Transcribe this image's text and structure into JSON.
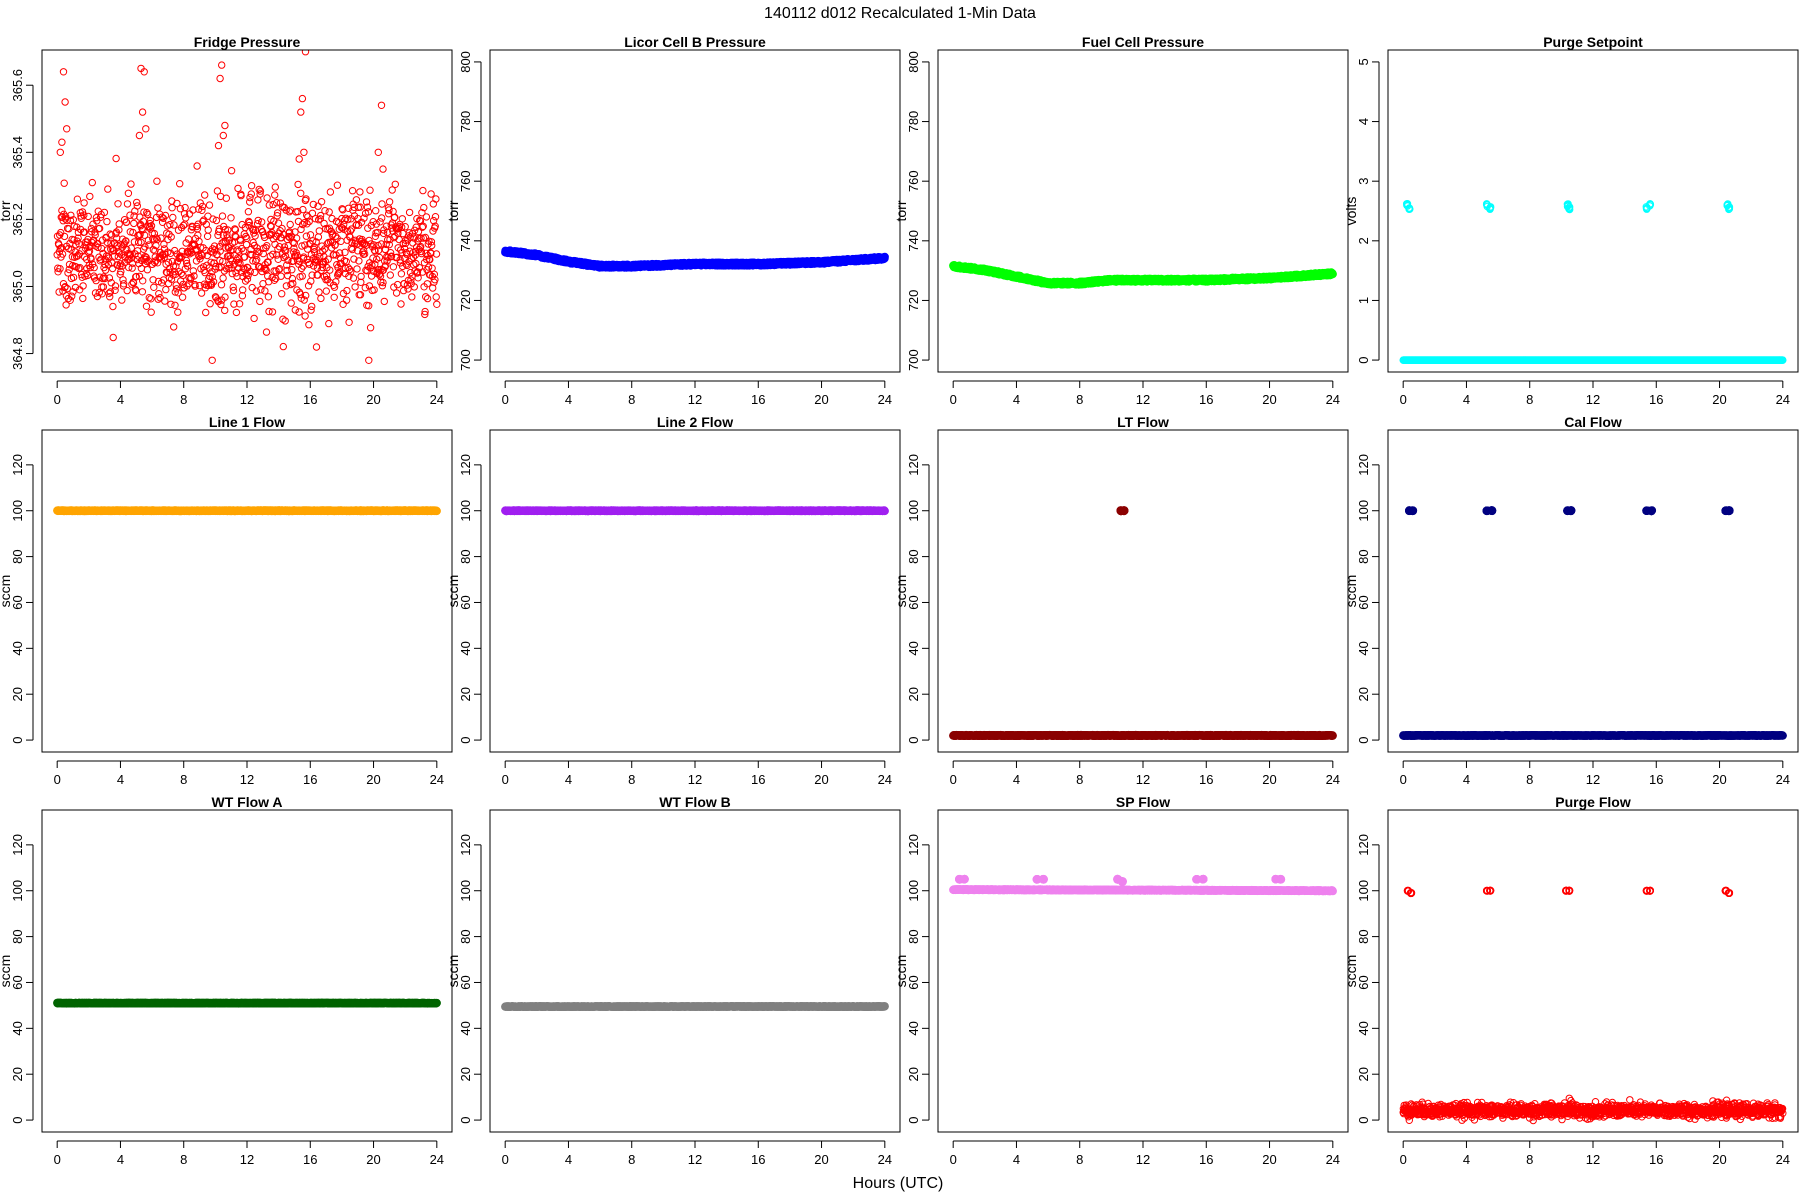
{
  "figure": {
    "title": "140112   d012   Recalculated 1-Min Data",
    "xlabel": "Hours (UTC)"
  },
  "chart_data": [
    {
      "type": "scatter",
      "title": "Fridge Pressure",
      "ylabel": "torr",
      "xlim": [
        -0.96,
        24.96
      ],
      "ylim": [
        364.745,
        365.705
      ],
      "xticks": [
        0,
        4,
        8,
        12,
        16,
        20,
        24
      ],
      "yticks": [
        364.8,
        365.0,
        365.2,
        365.4,
        365.6
      ],
      "ytick_labels": [
        "364.8",
        "365.0",
        "365.2",
        "365.4",
        "365.6"
      ],
      "color": "#ff0000",
      "marker": "open",
      "series": [
        {
          "generator": "noise",
          "center": 365.11,
          "sd": 0.085,
          "n": 1200,
          "spikes": [
            [
              0.4,
              365.64
            ],
            [
              0.5,
              365.55
            ],
            [
              0.6,
              365.47
            ],
            [
              0.3,
              365.43
            ],
            [
              0.2,
              365.4
            ],
            [
              5.3,
              365.65
            ],
            [
              5.5,
              365.64
            ],
            [
              5.4,
              365.52
            ],
            [
              5.6,
              365.47
            ],
            [
              5.2,
              365.45
            ],
            [
              10.4,
              365.66
            ],
            [
              10.3,
              365.62
            ],
            [
              10.6,
              365.48
            ],
            [
              10.5,
              365.45
            ],
            [
              10.2,
              365.42
            ],
            [
              15.7,
              365.7
            ],
            [
              15.5,
              365.56
            ],
            [
              15.4,
              365.52
            ],
            [
              15.6,
              365.4
            ],
            [
              15.3,
              365.38
            ],
            [
              20.5,
              365.54
            ],
            [
              20.3,
              365.4
            ],
            [
              20.6,
              365.35
            ],
            [
              9.8,
              364.78
            ],
            [
              19.7,
              364.78
            ]
          ]
        }
      ]
    },
    {
      "type": "scatter",
      "title": "Licor Cell B Pressure",
      "ylabel": "torr",
      "xlim": [
        -0.96,
        24.96
      ],
      "ylim": [
        696,
        804
      ],
      "xticks": [
        0,
        4,
        8,
        12,
        16,
        20,
        24
      ],
      "yticks": [
        700,
        720,
        740,
        760,
        780,
        800
      ],
      "ytick_labels": [
        "700",
        "720",
        "740",
        "760",
        "780",
        "800"
      ],
      "color": "#0000ff",
      "marker": "filled",
      "series": [
        {
          "generator": "line",
          "width": 1.0,
          "n": 1440,
          "points": [
            [
              0,
              736.5
            ],
            [
              2,
              735.2
            ],
            [
              4,
              733
            ],
            [
              6,
              731.5
            ],
            [
              8,
              731.5
            ],
            [
              12,
              732.2
            ],
            [
              16,
              732.2
            ],
            [
              20,
              732.8
            ],
            [
              24,
              734.2
            ]
          ]
        }
      ]
    },
    {
      "type": "scatter",
      "title": "Fuel Cell Pressure",
      "ylabel": "torr",
      "xlim": [
        -0.96,
        24.96
      ],
      "ylim": [
        696,
        804
      ],
      "xticks": [
        0,
        4,
        8,
        12,
        16,
        20,
        24
      ],
      "yticks": [
        700,
        720,
        740,
        760,
        780,
        800
      ],
      "ytick_labels": [
        "700",
        "720",
        "740",
        "760",
        "780",
        "800"
      ],
      "color": "#00ff00",
      "marker": "filled",
      "series": [
        {
          "generator": "line",
          "width": 1.0,
          "n": 1440,
          "points": [
            [
              0,
              731.5
            ],
            [
              2,
              730.2
            ],
            [
              4,
              728
            ],
            [
              6,
              725.8
            ],
            [
              8,
              725.8
            ],
            [
              10,
              726.8
            ],
            [
              16,
              726.8
            ],
            [
              20,
              727.5
            ],
            [
              24,
              729
            ]
          ]
        }
      ]
    },
    {
      "type": "scatter",
      "title": "Purge Setpoint",
      "ylabel": "volts",
      "xlim": [
        -0.96,
        24.96
      ],
      "ylim": [
        -0.2,
        5.2
      ],
      "xticks": [
        0,
        4,
        8,
        12,
        16,
        20,
        24
      ],
      "yticks": [
        0,
        1,
        2,
        3,
        4,
        5
      ],
      "ytick_labels": [
        "0",
        "1",
        "2",
        "3",
        "4",
        "5"
      ],
      "color": "#00ffff",
      "marker": "open",
      "series": [
        {
          "generator": "line",
          "width": 0.0,
          "n": 1440,
          "points": [
            [
              0,
              0
            ],
            [
              24,
              0
            ]
          ]
        },
        {
          "generator": "clusters",
          "width": 0.05,
          "n": 6,
          "points": [
            [
              0.25,
              2.6
            ],
            [
              0.4,
              2.55
            ],
            [
              5.3,
              2.6
            ],
            [
              5.5,
              2.55
            ],
            [
              10.4,
              2.6
            ],
            [
              10.5,
              2.55
            ],
            [
              15.4,
              2.55
            ],
            [
              15.6,
              2.6
            ],
            [
              20.5,
              2.6
            ],
            [
              20.6,
              2.55
            ]
          ]
        }
      ]
    },
    {
      "type": "scatter",
      "title": "Line 1 Flow",
      "ylabel": "sccm",
      "xlim": [
        -0.96,
        24.96
      ],
      "ylim": [
        -5.2,
        135.2
      ],
      "xticks": [
        0,
        4,
        8,
        12,
        16,
        20,
        24
      ],
      "yticks": [
        0,
        20,
        40,
        60,
        80,
        100,
        120
      ],
      "ytick_labels": [
        "0",
        "20",
        "40",
        "60",
        "80",
        "100",
        "120"
      ],
      "color": "#ffa500",
      "marker": "filled",
      "series": [
        {
          "generator": "line",
          "width": 0.3,
          "n": 1440,
          "points": [
            [
              0,
              100
            ],
            [
              24,
              100
            ]
          ]
        }
      ]
    },
    {
      "type": "scatter",
      "title": "Line 2 Flow",
      "ylabel": "sccm",
      "xlim": [
        -0.96,
        24.96
      ],
      "ylim": [
        -5.2,
        135.2
      ],
      "xticks": [
        0,
        4,
        8,
        12,
        16,
        20,
        24
      ],
      "yticks": [
        0,
        20,
        40,
        60,
        80,
        100,
        120
      ],
      "ytick_labels": [
        "0",
        "20",
        "40",
        "60",
        "80",
        "100",
        "120"
      ],
      "color": "#a020f0",
      "marker": "filled",
      "series": [
        {
          "generator": "line",
          "width": 0.3,
          "n": 1440,
          "points": [
            [
              0,
              100
            ],
            [
              24,
              100
            ]
          ]
        }
      ]
    },
    {
      "type": "scatter",
      "title": "LT Flow",
      "ylabel": "sccm",
      "xlim": [
        -0.96,
        24.96
      ],
      "ylim": [
        -5.2,
        135.2
      ],
      "xticks": [
        0,
        4,
        8,
        12,
        16,
        20,
        24
      ],
      "yticks": [
        0,
        20,
        40,
        60,
        80,
        100,
        120
      ],
      "ytick_labels": [
        "0",
        "20",
        "40",
        "60",
        "80",
        "100",
        "120"
      ],
      "color": "#8b0000",
      "marker": "filled",
      "series": [
        {
          "generator": "line",
          "width": 0.4,
          "n": 1440,
          "points": [
            [
              0,
              2
            ],
            [
              24,
              2
            ]
          ]
        },
        {
          "generator": "clusters",
          "width": 0.4,
          "n": 10,
          "points": [
            [
              10.6,
              100
            ],
            [
              10.8,
              100
            ]
          ]
        }
      ]
    },
    {
      "type": "scatter",
      "title": "Cal Flow",
      "ylabel": "sccm",
      "xlim": [
        -0.96,
        24.96
      ],
      "ylim": [
        -5.2,
        135.2
      ],
      "xticks": [
        0,
        4,
        8,
        12,
        16,
        20,
        24
      ],
      "yticks": [
        0,
        20,
        40,
        60,
        80,
        100,
        120
      ],
      "ytick_labels": [
        "0",
        "20",
        "40",
        "60",
        "80",
        "100",
        "120"
      ],
      "color": "#000080",
      "marker": "filled",
      "series": [
        {
          "generator": "line",
          "width": 0.3,
          "n": 1440,
          "points": [
            [
              0,
              2
            ],
            [
              24,
              2
            ]
          ]
        },
        {
          "generator": "clusters",
          "width": 0.3,
          "n": 14,
          "points": [
            [
              0.4,
              100
            ],
            [
              0.6,
              100
            ],
            [
              5.3,
              100
            ],
            [
              5.6,
              100
            ],
            [
              10.4,
              100
            ],
            [
              10.6,
              100
            ],
            [
              15.4,
              100
            ],
            [
              15.7,
              100
            ],
            [
              20.4,
              100
            ],
            [
              20.6,
              100
            ]
          ]
        }
      ]
    },
    {
      "type": "scatter",
      "title": "WT Flow A",
      "ylabel": "sccm",
      "xlim": [
        -0.96,
        24.96
      ],
      "ylim": [
        -5.2,
        135.2
      ],
      "xticks": [
        0,
        4,
        8,
        12,
        16,
        20,
        24
      ],
      "yticks": [
        0,
        20,
        40,
        60,
        80,
        100,
        120
      ],
      "ytick_labels": [
        "0",
        "20",
        "40",
        "60",
        "80",
        "100",
        "120"
      ],
      "color": "#006400",
      "marker": "filled",
      "series": [
        {
          "generator": "line",
          "width": 0.3,
          "n": 1440,
          "points": [
            [
              0,
              51
            ],
            [
              24,
              51
            ]
          ]
        }
      ]
    },
    {
      "type": "scatter",
      "title": "WT Flow B",
      "ylabel": "sccm",
      "xlim": [
        -0.96,
        24.96
      ],
      "ylim": [
        -5.2,
        135.2
      ],
      "xticks": [
        0,
        4,
        8,
        12,
        16,
        20,
        24
      ],
      "yticks": [
        0,
        20,
        40,
        60,
        80,
        100,
        120
      ],
      "ytick_labels": [
        "0",
        "20",
        "40",
        "60",
        "80",
        "100",
        "120"
      ],
      "color": "#808080",
      "marker": "filled",
      "series": [
        {
          "generator": "line",
          "width": 0.3,
          "n": 1440,
          "points": [
            [
              0,
              49.5
            ],
            [
              24,
              49.5
            ]
          ]
        }
      ]
    },
    {
      "type": "scatter",
      "title": "SP Flow",
      "ylabel": "sccm",
      "xlim": [
        -0.96,
        24.96
      ],
      "ylim": [
        -5.2,
        135.2
      ],
      "xticks": [
        0,
        4,
        8,
        12,
        16,
        20,
        24
      ],
      "yticks": [
        0,
        20,
        40,
        60,
        80,
        100,
        120
      ],
      "ytick_labels": [
        "0",
        "20",
        "40",
        "60",
        "80",
        "100",
        "120"
      ],
      "color": "#ee82ee",
      "marker": "filled",
      "series": [
        {
          "generator": "line",
          "width": 0.4,
          "n": 1440,
          "points": [
            [
              0,
              100.5
            ],
            [
              24,
              100
            ]
          ]
        },
        {
          "generator": "clusters",
          "width": 0.3,
          "n": 14,
          "points": [
            [
              0.4,
              105
            ],
            [
              0.7,
              105
            ],
            [
              5.3,
              105
            ],
            [
              5.7,
              105
            ],
            [
              10.4,
              105
            ],
            [
              10.7,
              104
            ],
            [
              15.4,
              105
            ],
            [
              15.8,
              105
            ],
            [
              20.4,
              105
            ],
            [
              20.7,
              105
            ]
          ]
        }
      ]
    },
    {
      "type": "scatter",
      "title": "Purge Flow",
      "ylabel": "sccm",
      "xlim": [
        -0.96,
        24.96
      ],
      "ylim": [
        -5.2,
        135.2
      ],
      "xticks": [
        0,
        4,
        8,
        12,
        16,
        20,
        24
      ],
      "yticks": [
        0,
        20,
        40,
        60,
        80,
        100,
        120
      ],
      "ytick_labels": [
        "0",
        "20",
        "40",
        "60",
        "80",
        "100",
        "120"
      ],
      "color": "#ff0000",
      "marker": "open",
      "series": [
        {
          "generator": "noise",
          "center": 4.2,
          "sd": 1.4,
          "n": 1440,
          "spikes": [
            [
              10.5,
              9.5
            ],
            [
              10.6,
              8.5
            ],
            [
              10.7,
              7.5
            ],
            [
              0.5,
              7.0
            ],
            [
              23.5,
              7.5
            ]
          ]
        },
        {
          "generator": "clusters",
          "width": 0.3,
          "n": 12,
          "points": [
            [
              0.3,
              100
            ],
            [
              0.5,
              99
            ],
            [
              5.3,
              100
            ],
            [
              5.5,
              100
            ],
            [
              10.3,
              100
            ],
            [
              10.5,
              100
            ],
            [
              15.4,
              100
            ],
            [
              15.6,
              100
            ],
            [
              20.4,
              100
            ],
            [
              20.6,
              99
            ]
          ]
        }
      ]
    }
  ]
}
